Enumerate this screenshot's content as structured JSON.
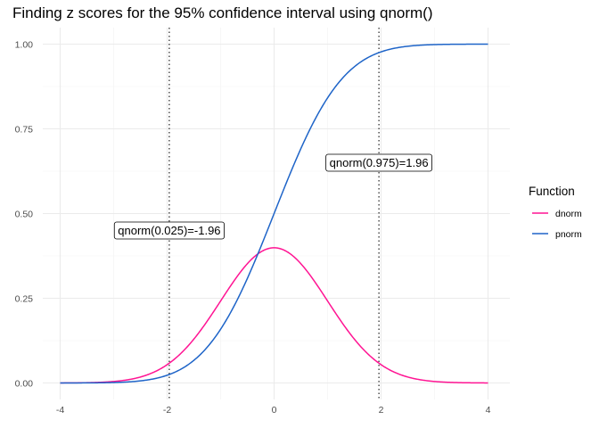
{
  "chart_data": {
    "type": "line",
    "title": "Finding z scores for the 95% confidence interval using qnorm()",
    "xlabel": "",
    "ylabel": "",
    "xlim": [
      -4,
      4
    ],
    "ylim": [
      0,
      1
    ],
    "x_ticks": [
      -4,
      -2,
      0,
      2,
      4
    ],
    "x_tick_labels": [
      "-4",
      "-2",
      "0",
      "2",
      "4"
    ],
    "y_ticks": [
      0,
      0.25,
      0.5,
      0.75,
      1
    ],
    "y_tick_labels": [
      "0.00",
      "0.25",
      "0.50",
      "0.75",
      "1.00"
    ],
    "grid": true,
    "legend": {
      "title": "Function",
      "position": "right",
      "entries": [
        {
          "name": "dnorm",
          "color": "#ff1493"
        },
        {
          "name": "pnorm",
          "color": "#1e64c8"
        }
      ]
    },
    "series": [
      {
        "name": "dnorm",
        "color": "#ff1493",
        "function": "dnorm"
      },
      {
        "name": "pnorm",
        "color": "#1e64c8",
        "function": "pnorm"
      }
    ],
    "vlines": [
      {
        "x": -1.96,
        "style": "dotted"
      },
      {
        "x": 1.96,
        "style": "dotted"
      }
    ],
    "annotations": [
      {
        "text": "qnorm(0.025)=-1.96",
        "x": -1.96,
        "y": 0.45
      },
      {
        "text": "qnorm(0.975)=1.96",
        "x": 1.96,
        "y": 0.65
      }
    ]
  }
}
